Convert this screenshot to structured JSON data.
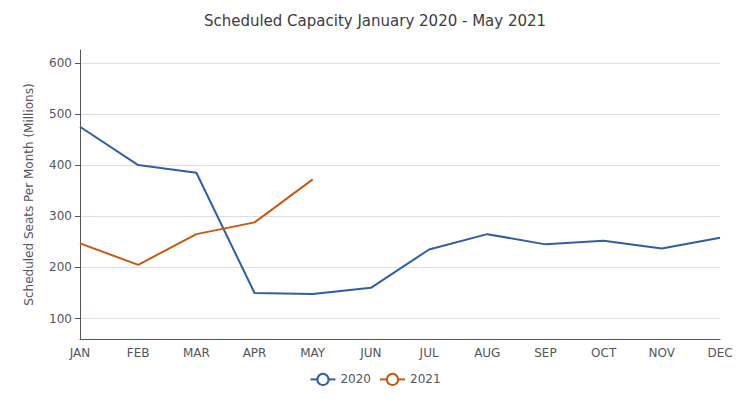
{
  "chart_data": {
    "type": "line",
    "title": "Scheduled Capacity January 2020 - May 2021",
    "ylabel": "Scheduled Seats Per Month (Millions)",
    "categories": [
      "JAN",
      "FEB",
      "MAR",
      "APR",
      "MAY",
      "JUN",
      "JUL",
      "AUG",
      "SEP",
      "OCT",
      "NOV",
      "DEC"
    ],
    "series": [
      {
        "name": "2020",
        "color": "#2E5FA3",
        "values": [
          475,
          400,
          385,
          150,
          148,
          160,
          235,
          265,
          245,
          252,
          237,
          258
        ]
      },
      {
        "name": "2021",
        "color": "#C55A11",
        "values": [
          247,
          205,
          265,
          288,
          372,
          null,
          null,
          null,
          null,
          null,
          null,
          null
        ]
      }
    ],
    "ylim": [
      60,
      625
    ],
    "yticks": [
      100,
      200,
      300,
      400,
      500,
      600
    ],
    "grid": true,
    "legend": "bottom"
  }
}
